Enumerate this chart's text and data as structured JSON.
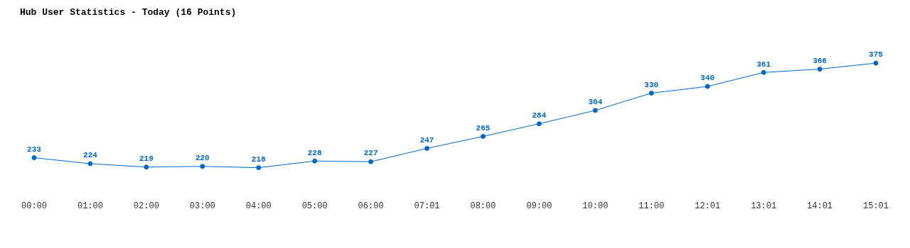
{
  "chart_data": {
    "type": "line",
    "title": "Hub User Statistics - Today (16 Points)",
    "categories": [
      "00:00",
      "01:00",
      "02:00",
      "03:00",
      "04:00",
      "05:00",
      "06:00",
      "07:01",
      "08:00",
      "09:00",
      "10:00",
      "11:00",
      "12:01",
      "13:01",
      "14:01",
      "15:01"
    ],
    "series": [
      {
        "color": "#0066cc",
        "values": [
          233,
          224,
          219,
          220,
          218,
          228,
          227,
          247,
          265,
          284,
          304,
          330,
          340,
          361,
          366,
          375
        ]
      }
    ],
    "data_labels": true,
    "tick_labels": "x",
    "marker": "circle"
  }
}
